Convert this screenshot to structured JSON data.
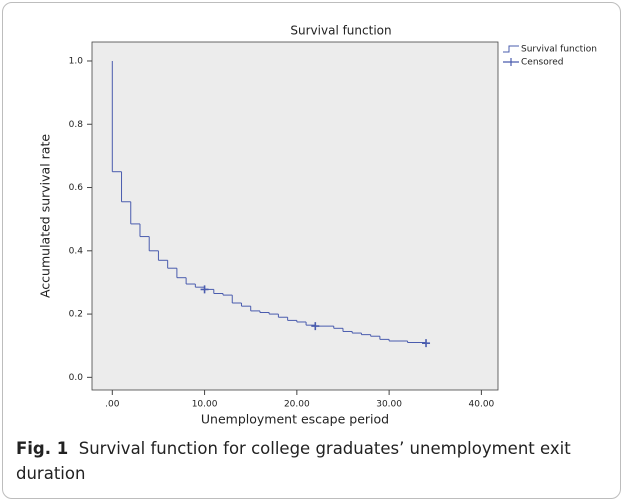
{
  "chart_data": {
    "type": "line",
    "title": "Survival function",
    "x_label": "Unemployment escape period",
    "y_label": "Accumulated survival rate",
    "xlim": [
      -2.2,
      41.8
    ],
    "ylim": [
      -0.04,
      1.06
    ],
    "xticks": [
      {
        "value": 0,
        "label": ".00"
      },
      {
        "value": 10,
        "label": "10.00"
      },
      {
        "value": 20,
        "label": "20.00"
      },
      {
        "value": 30,
        "label": "30.00"
      },
      {
        "value": 40,
        "label": "40.00"
      }
    ],
    "yticks": [
      {
        "value": 0,
        "label": "0.0"
      },
      0.2,
      0.4,
      0.6,
      0.8,
      {
        "value": 1,
        "label": "1.0"
      }
    ],
    "background": "#ececec",
    "series": [
      {
        "name": "Survival function",
        "color": "#4a5cae",
        "step": true,
        "x": [
          0,
          0,
          1,
          2,
          3,
          4,
          5,
          6,
          7,
          8,
          9,
          10,
          11,
          12,
          13,
          14,
          15,
          16,
          17,
          18,
          19,
          20,
          21,
          22,
          24,
          25,
          26,
          27,
          28,
          29,
          30,
          32,
          34
        ],
        "values": [
          1.0,
          0.65,
          0.555,
          0.485,
          0.445,
          0.4,
          0.37,
          0.345,
          0.315,
          0.295,
          0.285,
          0.278,
          0.265,
          0.26,
          0.235,
          0.225,
          0.21,
          0.205,
          0.2,
          0.19,
          0.18,
          0.175,
          0.165,
          0.162,
          0.155,
          0.145,
          0.14,
          0.135,
          0.13,
          0.12,
          0.115,
          0.11,
          0.108
        ]
      },
      {
        "name": "Censored",
        "color": "#4a5cae",
        "marker": "+",
        "x": [
          10,
          22,
          34
        ],
        "values": [
          0.278,
          0.162,
          0.108
        ]
      }
    ]
  },
  "caption": {
    "label": "Fig. 1",
    "text": "Survival function for college graduates’ unemployment exit duration"
  }
}
